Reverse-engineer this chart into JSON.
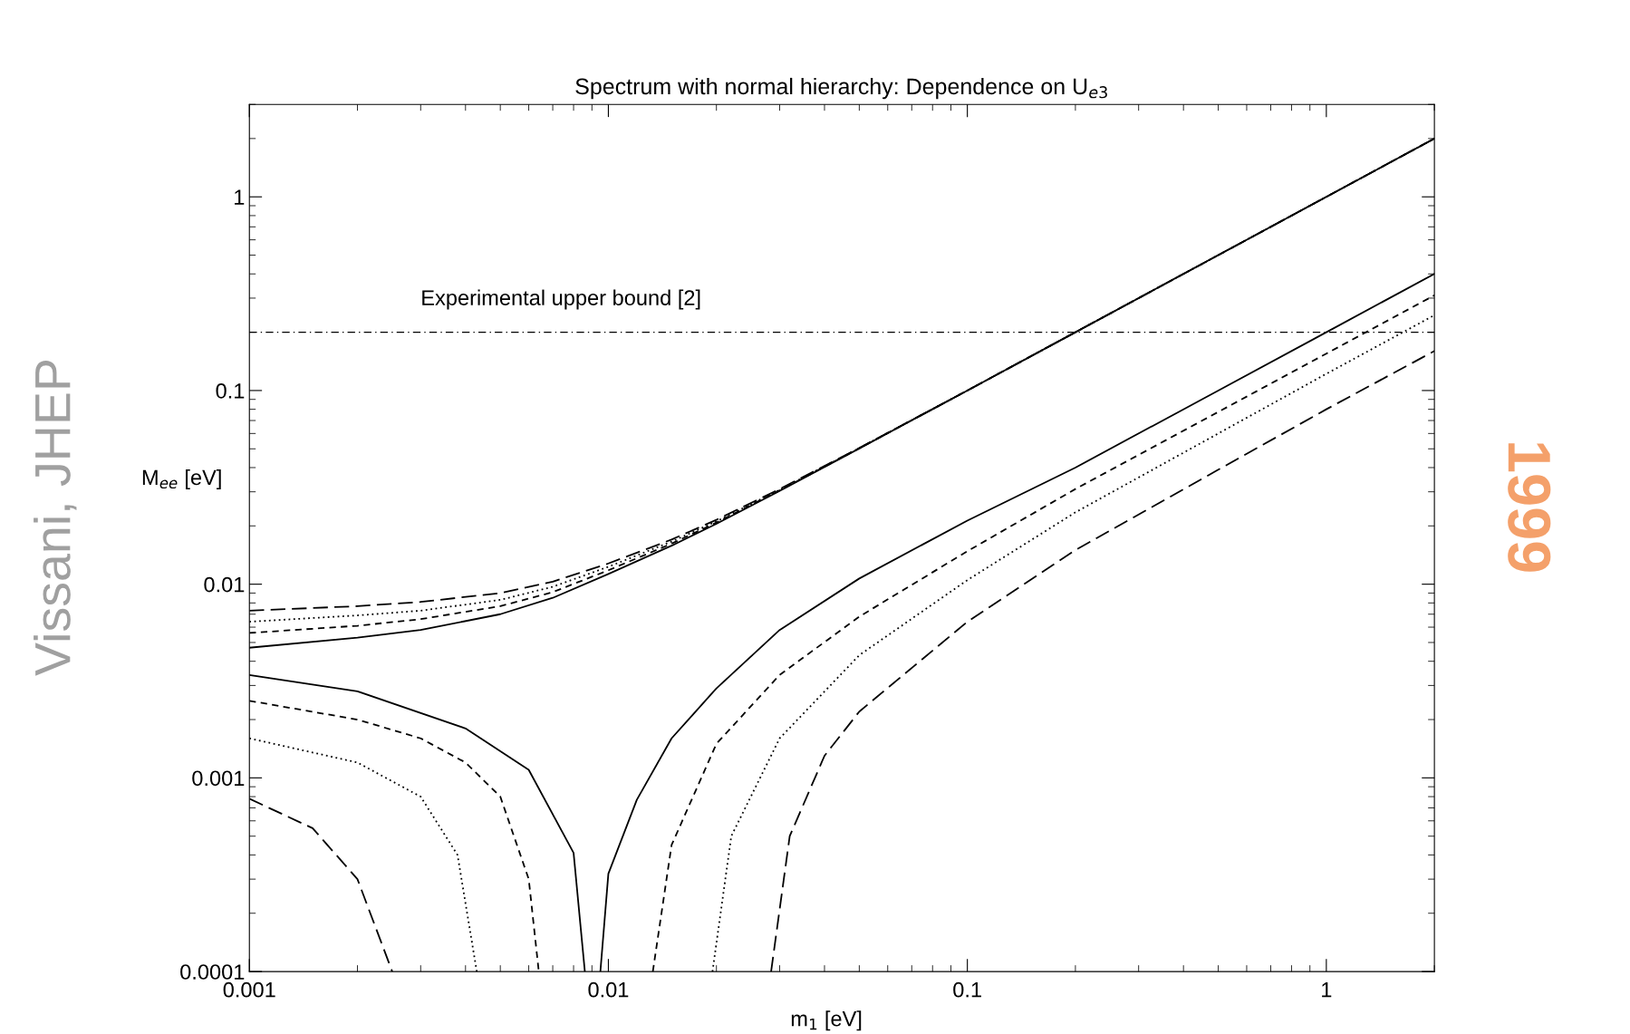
{
  "chart_data": {
    "type": "line",
    "title": "Spectrum with normal hierarchy: Dependence on U$_{e3}$",
    "xlabel": "m$_{1}$ [eV]",
    "ylabel": "M$_{ee}$ [eV]",
    "log": "xy",
    "xlim": [
      0.001,
      2
    ],
    "ylim": [
      0.0001,
      3
    ],
    "xticks": [
      0.001,
      0.01,
      0.1,
      1
    ],
    "yticks": [
      0.0001,
      0.001,
      0.01,
      0.1,
      1
    ],
    "grid": false,
    "legend": false,
    "marker": "none",
    "series": [
      {
        "color": "#000000",
        "line_style": "solid",
        "x": [
          0.001,
          0.002,
          0.003,
          0.005,
          0.007,
          0.01,
          0.015,
          0.02,
          0.03,
          0.05,
          0.1,
          0.2,
          0.5,
          1,
          2
        ],
        "values": [
          0.0047,
          0.0053,
          0.0058,
          0.007,
          0.0085,
          0.0113,
          0.0158,
          0.0205,
          0.0303,
          0.0502,
          0.1,
          0.2,
          0.5,
          1,
          2
        ]
      },
      {
        "color": "#000000",
        "line_style": "dashed",
        "x": [
          0.001,
          0.002,
          0.003,
          0.005,
          0.007,
          0.01,
          0.015,
          0.02,
          0.03,
          0.05,
          0.1,
          0.2,
          0.5,
          1,
          2
        ],
        "values": [
          0.0056,
          0.0061,
          0.0066,
          0.0077,
          0.0091,
          0.0118,
          0.0162,
          0.0208,
          0.0305,
          0.0503,
          0.1,
          0.2,
          0.5,
          1,
          2
        ]
      },
      {
        "color": "#000000",
        "line_style": "dotted",
        "x": [
          0.001,
          0.002,
          0.003,
          0.005,
          0.007,
          0.01,
          0.015,
          0.02,
          0.03,
          0.05,
          0.1,
          0.2,
          0.5,
          1,
          2
        ],
        "values": [
          0.0064,
          0.0069,
          0.0073,
          0.0083,
          0.0097,
          0.0123,
          0.0166,
          0.0211,
          0.0307,
          0.0504,
          0.1,
          0.2,
          0.5,
          1,
          2
        ]
      },
      {
        "color": "#000000",
        "line_style": "longdashed",
        "x": [
          0.001,
          0.002,
          0.003,
          0.005,
          0.007,
          0.01,
          0.015,
          0.02,
          0.03,
          0.05,
          0.1,
          0.2,
          0.5,
          1,
          2
        ],
        "values": [
          0.0073,
          0.0077,
          0.0081,
          0.009,
          0.0103,
          0.0128,
          0.017,
          0.0215,
          0.031,
          0.0505,
          0.1,
          0.2,
          0.5,
          1,
          2
        ]
      },
      {
        "color": "#000000",
        "line_style": "solid",
        "x": [
          0.001,
          0.002,
          0.004,
          0.006,
          0.008,
          0.0086,
          0.009,
          0.0095,
          0.01,
          0.012,
          0.015,
          0.02,
          0.03,
          0.05,
          0.1,
          0.2,
          0.5,
          1,
          2
        ],
        "values": [
          0.0034,
          0.0028,
          0.0018,
          0.0011,
          0.00041,
          0.0001,
          null,
          0.0001,
          0.00032,
          0.00077,
          0.0016,
          0.0029,
          0.0058,
          0.0107,
          0.0213,
          0.04,
          0.1,
          0.2,
          0.4
        ]
      },
      {
        "color": "#000000",
        "line_style": "dashed",
        "x": [
          0.001,
          0.002,
          0.003,
          0.004,
          0.005,
          0.006,
          0.0064,
          0.01,
          0.0133,
          0.015,
          0.02,
          0.03,
          0.05,
          0.1,
          0.2,
          0.5,
          1,
          2
        ],
        "values": [
          0.0025,
          0.002,
          0.0016,
          0.0012,
          0.0008,
          0.0003,
          0.0001,
          null,
          0.0001,
          0.00045,
          0.0015,
          0.0034,
          0.0068,
          0.0148,
          0.031,
          0.0775,
          0.155,
          0.31
        ]
      },
      {
        "color": "#000000",
        "line_style": "dotted",
        "x": [
          0.001,
          0.002,
          0.003,
          0.0038,
          0.0043,
          0.01,
          0.0195,
          0.022,
          0.03,
          0.05,
          0.1,
          0.2,
          0.5,
          1,
          2
        ],
        "values": [
          0.0016,
          0.0012,
          0.0008,
          0.0004,
          0.0001,
          null,
          0.0001,
          0.0005,
          0.0016,
          0.0043,
          0.0105,
          0.0235,
          0.06,
          0.122,
          0.245
        ]
      },
      {
        "color": "#000000",
        "line_style": "longdashed",
        "x": [
          0.001,
          0.0015,
          0.002,
          0.0025,
          0.01,
          0.0284,
          0.032,
          0.04,
          0.05,
          0.1,
          0.2,
          0.5,
          1,
          2
        ],
        "values": [
          0.00078,
          0.00055,
          0.0003,
          0.0001,
          null,
          0.0001,
          0.0005,
          0.0013,
          0.0022,
          0.0064,
          0.015,
          0.039,
          0.08,
          0.16
        ]
      }
    ],
    "ref_lines": [
      {
        "axis": "y",
        "value": 0.2,
        "label": "Experimental upper bound [2]",
        "color": "#000000",
        "line_style": "dashdot"
      }
    ],
    "annotations": [
      "Vissani, JHEP",
      "1999"
    ]
  }
}
